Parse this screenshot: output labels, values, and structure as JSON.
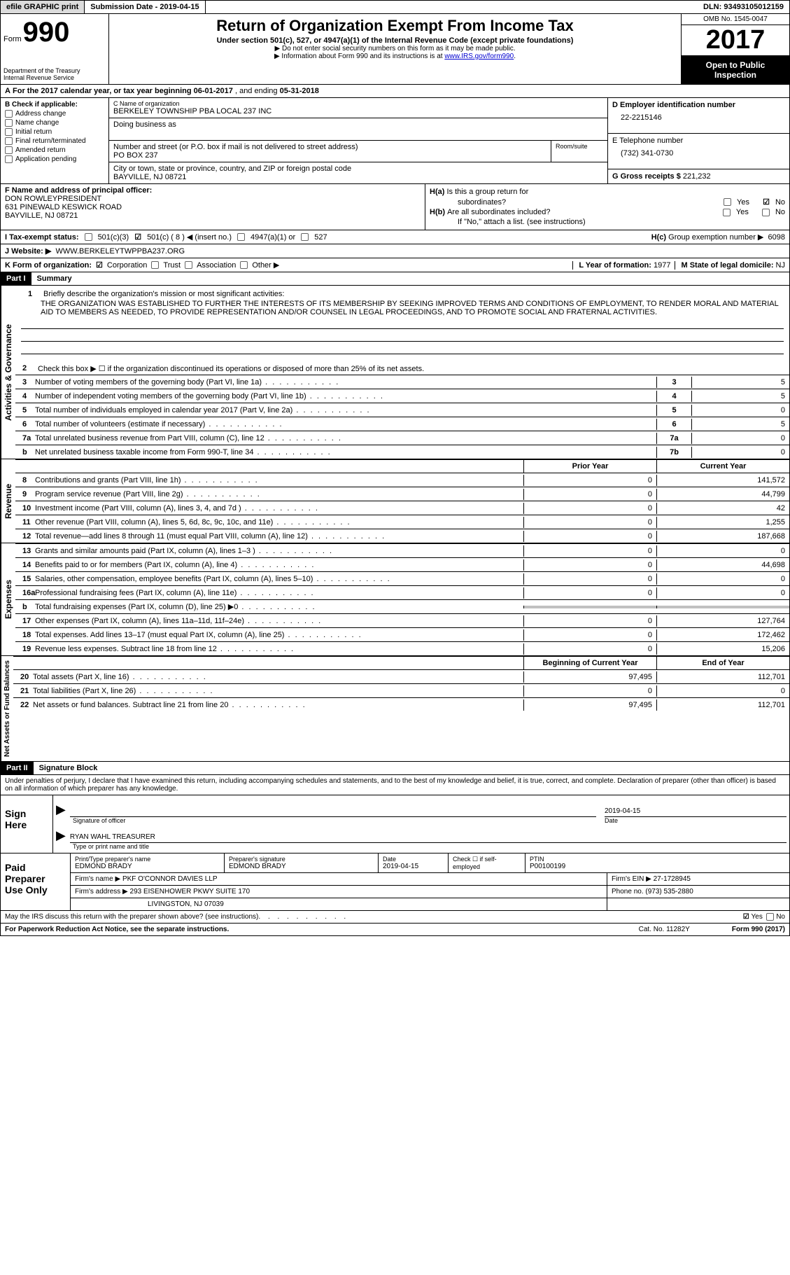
{
  "topbar": {
    "print": "efile GRAPHIC print",
    "sub_date_label": "Submission Date - ",
    "sub_date": "2019-04-15",
    "dln_label": "DLN: ",
    "dln": "93493105012159"
  },
  "header": {
    "form_label": "Form",
    "form_number": "990",
    "dept1": "Department of the Treasury",
    "dept2": "Internal Revenue Service",
    "title": "Return of Organization Exempt From Income Tax",
    "subtitle": "Under section 501(c), 527, or 4947(a)(1) of the Internal Revenue Code (except private foundations)",
    "instr1": "▶ Do not enter social security numbers on this form as it may be made public.",
    "instr2_pre": "▶ Information about Form 990 and its instructions is at ",
    "instr2_link": "www.IRS.gov/form990",
    "omb": "OMB No. 1545-0047",
    "year": "2017",
    "open": "Open to Public Inspection"
  },
  "line_a": {
    "prefix": "A",
    "text_1": "For the 2017 calendar year, or tax year beginning ",
    "begin": "06-01-2017",
    "text_2": "  , and ending ",
    "end": "05-31-2018"
  },
  "b": {
    "label": "B Check if applicable:",
    "opts": [
      "Address change",
      "Name change",
      "Initial return",
      "Final return/terminated",
      "Amended return",
      "Application pending"
    ]
  },
  "c": {
    "name_lbl": "C Name of organization",
    "name": "BERKELEY TOWNSHIP PBA LOCAL 237 INC",
    "dba_lbl": "Doing business as",
    "addr_lbl": "Number and street (or P.O. box if mail is not delivered to street address)",
    "room_lbl": "Room/suite",
    "addr": "PO BOX 237",
    "city_lbl": "City or town, state or province, country, and ZIP or foreign postal code",
    "city": "BAYVILLE, NJ  08721"
  },
  "d": {
    "ein_lbl": "D Employer identification number",
    "ein": "22-2215146",
    "phone_lbl": "E Telephone number",
    "phone": "(732) 341-0730",
    "gross_lbl": "G Gross receipts $ ",
    "gross": "221,232"
  },
  "f": {
    "lbl": "F  Name and address of principal officer:",
    "name": "DON ROWLEYPRESIDENT",
    "addr": "631 PINEWALD KESWICK ROAD",
    "city": "BAYVILLE, NJ  08721"
  },
  "h": {
    "a_lbl": "H(a)",
    "a_text": "Is this a group return for",
    "a_text2": "subordinates?",
    "b_lbl": "H(b)",
    "b_text": "Are all subordinates included?",
    "b_note": "If \"No,\" attach a list. (see instructions)",
    "c_lbl": "H(c)",
    "c_text": "Group exemption number ▶",
    "c_val": "6098",
    "yes": "Yes",
    "no": "No"
  },
  "i": {
    "lbl": "I  Tax-exempt status:",
    "o1": "501(c)(3)",
    "o2": "501(c) ( 8 ) ◀ (insert no.)",
    "o3": "4947(a)(1) or",
    "o4": "527"
  },
  "j": {
    "lbl": "J  Website: ▶",
    "val": "WWW.BERKELEYTWPPBA237.ORG"
  },
  "k": {
    "lbl": "K Form of organization:",
    "o1": "Corporation",
    "o2": "Trust",
    "o3": "Association",
    "o4": "Other ▶",
    "yr_lbl": "L Year of formation: ",
    "yr": "1977",
    "st_lbl": "M State of legal domicile: ",
    "st": "NJ"
  },
  "part1": {
    "hdr": "Part I",
    "title": "Summary"
  },
  "mission": {
    "num": "1",
    "lbl": "Briefly describe the organization's mission or most significant activities:",
    "text": "THE ORGANIZATION WAS ESTABLISHED TO FURTHER THE INTERESTS OF ITS MEMBERSHIP BY SEEKING IMPROVED TERMS AND CONDITIONS OF EMPLOYMENT, TO RENDER MORAL AND MATERIAL AID TO MEMBERS AS NEEDED, TO PROVIDE REPRESENTATION AND/OR COUNSEL IN LEGAL PROCEEDINGS, AND TO PROMOTE SOCIAL AND FRATERNAL ACTIVITIES."
  },
  "gov": {
    "vert": "Activities & Governance",
    "l2": "Check this box ▶ ☐  if the organization discontinued its operations or disposed of more than 25% of its net assets.",
    "lines": [
      {
        "n": "3",
        "t": "Number of voting members of the governing body (Part VI, line 1a)",
        "b": "3",
        "v": "5"
      },
      {
        "n": "4",
        "t": "Number of independent voting members of the governing body (Part VI, line 1b)",
        "b": "4",
        "v": "5"
      },
      {
        "n": "5",
        "t": "Total number of individuals employed in calendar year 2017 (Part V, line 2a)",
        "b": "5",
        "v": "0"
      },
      {
        "n": "6",
        "t": "Total number of volunteers (estimate if necessary)",
        "b": "6",
        "v": "5"
      },
      {
        "n": "7a",
        "t": "Total unrelated business revenue from Part VIII, column (C), line 12",
        "b": "7a",
        "v": "0"
      },
      {
        "n": "b",
        "t": "Net unrelated business taxable income from Form 990-T, line 34",
        "b": "7b",
        "v": "0"
      }
    ]
  },
  "colhdr": {
    "c1": "Prior Year",
    "c2": "Current Year"
  },
  "revenue": {
    "vert": "Revenue",
    "lines": [
      {
        "n": "8",
        "t": "Contributions and grants (Part VIII, line 1h)",
        "c1": "0",
        "c2": "141,572"
      },
      {
        "n": "9",
        "t": "Program service revenue (Part VIII, line 2g)",
        "c1": "0",
        "c2": "44,799"
      },
      {
        "n": "10",
        "t": "Investment income (Part VIII, column (A), lines 3, 4, and 7d )",
        "c1": "0",
        "c2": "42"
      },
      {
        "n": "11",
        "t": "Other revenue (Part VIII, column (A), lines 5, 6d, 8c, 9c, 10c, and 11e)",
        "c1": "0",
        "c2": "1,255"
      },
      {
        "n": "12",
        "t": "Total revenue—add lines 8 through 11 (must equal Part VIII, column (A), line 12)",
        "c1": "0",
        "c2": "187,668"
      }
    ]
  },
  "expenses": {
    "vert": "Expenses",
    "lines": [
      {
        "n": "13",
        "t": "Grants and similar amounts paid (Part IX, column (A), lines 1–3 )",
        "c1": "0",
        "c2": "0"
      },
      {
        "n": "14",
        "t": "Benefits paid to or for members (Part IX, column (A), line 4)",
        "c1": "0",
        "c2": "44,698"
      },
      {
        "n": "15",
        "t": "Salaries, other compensation, employee benefits (Part IX, column (A), lines 5–10)",
        "c1": "0",
        "c2": "0"
      },
      {
        "n": "16a",
        "t": "Professional fundraising fees (Part IX, column (A), line 11e)",
        "c1": "0",
        "c2": "0"
      },
      {
        "n": "b",
        "t": "Total fundraising expenses (Part IX, column (D), line 25) ▶0",
        "c1": "",
        "c2": "",
        "shade": true
      },
      {
        "n": "17",
        "t": "Other expenses (Part IX, column (A), lines 11a–11d, 11f–24e)",
        "c1": "0",
        "c2": "127,764"
      },
      {
        "n": "18",
        "t": "Total expenses. Add lines 13–17 (must equal Part IX, column (A), line 25)",
        "c1": "0",
        "c2": "172,462"
      },
      {
        "n": "19",
        "t": "Revenue less expenses. Subtract line 18 from line 12",
        "c1": "0",
        "c2": "15,206"
      }
    ]
  },
  "colhdr2": {
    "c1": "Beginning of Current Year",
    "c2": "End of Year"
  },
  "netassets": {
    "vert": "Net Assets or Fund Balances",
    "lines": [
      {
        "n": "20",
        "t": "Total assets (Part X, line 16)",
        "c1": "97,495",
        "c2": "112,701"
      },
      {
        "n": "21",
        "t": "Total liabilities (Part X, line 26)",
        "c1": "0",
        "c2": "0"
      },
      {
        "n": "22",
        "t": "Net assets or fund balances. Subtract line 21 from line 20",
        "c1": "97,495",
        "c2": "112,701"
      }
    ]
  },
  "part2": {
    "hdr": "Part II",
    "title": "Signature Block"
  },
  "sig": {
    "perjury": "Under penalties of perjury, I declare that I have examined this return, including accompanying schedules and statements, and to the best of my knowledge and belief, it is true, correct, and complete. Declaration of preparer (other than officer) is based on all information of which preparer has any knowledge.",
    "sign_here": "Sign Here",
    "sig_lbl": "Signature of officer",
    "date_lbl": "Date",
    "date_val": "2019-04-15",
    "name_val": "RYAN WAHL TREASURER",
    "name_lbl": "Type or print name and title"
  },
  "paid": {
    "lbl": "Paid Preparer Use Only",
    "r1": {
      "c1_lbl": "Print/Type preparer's name",
      "c1": "EDMOND BRADY",
      "c2_lbl": "Preparer's signature",
      "c2": "EDMOND BRADY",
      "c3_lbl": "Date",
      "c3": "2019-04-15",
      "c4_lbl": "Check ☐ if self-employed",
      "c5_lbl": "PTIN",
      "c5": "P00100199"
    },
    "r2": {
      "lbl": "Firm's name    ▶ ",
      "val": "PKF O'CONNOR DAVIES LLP",
      "ein_lbl": "Firm's EIN ▶ ",
      "ein": "27-1728945"
    },
    "r3": {
      "lbl": "Firm's address ▶ ",
      "val": "293 EISENHOWER PKWY SUITE 170",
      "ph_lbl": "Phone no. ",
      "ph": "(973) 535-2880"
    },
    "r3b": {
      "val": "LIVINGSTON, NJ  07039"
    }
  },
  "discuss": {
    "text": "May the IRS discuss this return with the preparer shown above? (see instructions)",
    "yes": "Yes",
    "no": "No"
  },
  "footer": {
    "pra": "For Paperwork Reduction Act Notice, see the separate instructions.",
    "cat": "Cat. No. 11282Y",
    "form": "Form 990 (2017)"
  }
}
